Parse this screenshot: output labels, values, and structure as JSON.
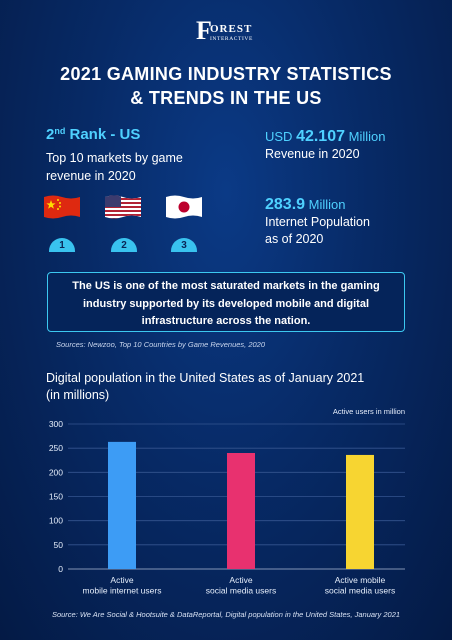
{
  "brand": {
    "logo_initial": "F",
    "logo_word": "OREST",
    "logo_sub": "INTERACTIVE"
  },
  "title": {
    "line1": "2021 GAMING INDUSTRY STATISTICS",
    "line2": "& TRENDS IN THE US"
  },
  "rank": {
    "number": "2",
    "suffix": "nd",
    "text": " Rank - US",
    "description": "Top 10 markets by game revenue in 2020"
  },
  "flags": [
    {
      "country": "china-flag",
      "badge": "1"
    },
    {
      "country": "usa-flag",
      "badge": "2"
    },
    {
      "country": "japan-flag",
      "badge": "3"
    }
  ],
  "revenue": {
    "prefix": "USD ",
    "value": "42.107",
    "unit": " Million",
    "desc": "Revenue in 2020"
  },
  "internet": {
    "value": "283.9",
    "unit": " Million",
    "desc1": "Internet Population",
    "desc2": "as of 2020"
  },
  "callout": {
    "line1": "The US is one of the most saturated markets in the gaming",
    "line2": "industry supported by its developed mobile and digital",
    "line3": "infrastructure across the nation."
  },
  "sources": "Sources: Newzoo, Top 10 Countries by Game Revenues, 2020",
  "chart_data": {
    "type": "bar",
    "title": "Digital population in the United States as of January 2021 (in millions)",
    "title_line1": "Digital population in the United States as of January 2021",
    "title_line2": "(in millions)",
    "legend": "Active users in million",
    "categories": [
      [
        "Active",
        "mobile internet users"
      ],
      [
        "Active",
        "social media users"
      ],
      [
        "Active mobile",
        "social media users"
      ]
    ],
    "values": [
      263,
      240,
      236
    ],
    "ylim": [
      0,
      300
    ],
    "yticks": [
      0,
      50,
      100,
      150,
      200,
      250,
      300
    ],
    "grid": true,
    "colors": [
      "#3d9cf5",
      "#e8316f",
      "#f7d531"
    ]
  },
  "footer": "Source: We Are Social & Hootsuite & DataReportal, Digital population in the United States, January 2021"
}
